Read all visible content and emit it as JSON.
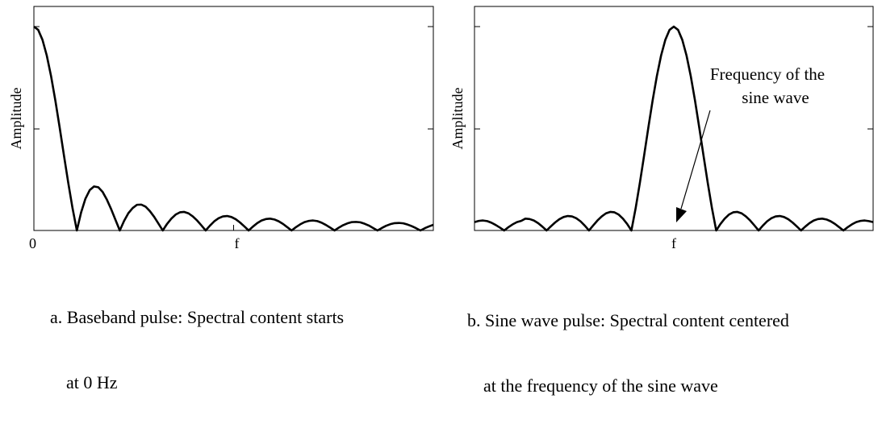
{
  "chart_data": [
    {
      "type": "line",
      "ylabel": "Amplitude",
      "xlabel": "",
      "x_tick_labels": [
        "0",
        "f"
      ],
      "caption": [
        "a. Baseband pulse: Spectral content starts",
        "at 0 Hz"
      ],
      "xlim": [
        0,
        9.3
      ],
      "ylim": [
        0,
        1.0
      ],
      "series": [
        {
          "x": [
            0.0,
            0.1,
            0.2,
            0.3,
            0.4,
            0.5,
            0.6,
            0.7,
            0.8,
            0.9,
            1.0,
            1.1,
            1.2,
            1.3,
            1.4,
            1.5,
            1.6,
            1.7,
            1.8,
            1.9,
            2.0,
            2.1,
            2.2,
            2.3,
            2.4,
            2.5,
            2.6,
            2.7,
            2.8,
            2.9,
            3.0,
            3.1,
            3.2,
            3.3,
            3.4,
            3.5,
            3.6,
            3.7,
            3.8,
            3.9,
            4.0,
            4.1,
            4.2,
            4.3,
            4.4,
            4.5,
            4.6,
            4.7,
            4.8,
            4.9,
            5.0,
            5.1,
            5.2,
            5.3,
            5.4,
            5.5,
            5.6,
            5.7,
            5.8,
            5.9,
            6.0,
            6.1,
            6.2,
            6.3,
            6.4,
            6.5,
            6.6,
            6.7,
            6.8,
            6.9,
            7.0,
            7.1,
            7.2,
            7.3,
            7.4,
            7.5,
            7.6,
            7.7,
            7.8,
            7.9,
            8.0,
            8.1,
            8.2,
            8.3,
            8.4,
            8.5,
            8.6,
            8.7,
            8.8,
            8.9,
            9.0,
            9.1,
            9.2,
            9.3
          ],
          "y": [
            1.0,
            0.984,
            0.935,
            0.858,
            0.757,
            0.637,
            0.505,
            0.368,
            0.234,
            0.109,
            0.0,
            0.089,
            0.156,
            0.198,
            0.216,
            0.212,
            0.189,
            0.151,
            0.104,
            0.052,
            0.0,
            0.047,
            0.085,
            0.11,
            0.126,
            0.127,
            0.117,
            0.095,
            0.067,
            0.034,
            0.0,
            0.032,
            0.058,
            0.078,
            0.089,
            0.091,
            0.084,
            0.069,
            0.049,
            0.025,
            0.0,
            0.024,
            0.045,
            0.06,
            0.069,
            0.071,
            0.066,
            0.055,
            0.039,
            0.02,
            0.0,
            0.019,
            0.036,
            0.049,
            0.056,
            0.058,
            0.054,
            0.045,
            0.032,
            0.016,
            0.0,
            0.016,
            0.03,
            0.041,
            0.047,
            0.049,
            0.046,
            0.038,
            0.027,
            0.014,
            0.0,
            0.014,
            0.026,
            0.035,
            0.041,
            0.042,
            0.04,
            0.033,
            0.024,
            0.012,
            0.0,
            0.012,
            0.023,
            0.031,
            0.036,
            0.037,
            0.035,
            0.029,
            0.021,
            0.011,
            0.0,
            0.011,
            0.02,
            0.028
          ]
        }
      ]
    },
    {
      "type": "line",
      "ylabel": "Amplitude",
      "xlabel": "",
      "x_tick_labels": [
        "f"
      ],
      "caption": [
        "b. Sine wave pulse: Spectral content centered",
        "at the frequency of the sine wave"
      ],
      "annotation": [
        "Frequency of the",
        "sine wave"
      ],
      "xlim": [
        -4.7,
        4.7
      ],
      "ylim": [
        0,
        1.0
      ],
      "series": [
        {
          "x": [
            -4.7,
            -4.6,
            -4.5,
            -4.4,
            -4.3,
            -4.2,
            -4.1,
            -4.0,
            -3.9,
            -3.8,
            -3.7,
            -3.6,
            -3.5,
            -3.4,
            -3.3,
            -3.2,
            -3.1,
            -3.0,
            -2.9,
            -2.8,
            -2.7,
            -2.6,
            -2.5,
            -2.4,
            -2.3,
            -2.2,
            -2.1,
            -2.0,
            -1.9,
            -1.8,
            -1.7,
            -1.6,
            -1.5,
            -1.4,
            -1.3,
            -1.2,
            -1.1,
            -1.0,
            -0.9,
            -0.8,
            -0.7,
            -0.6,
            -0.5,
            -0.4,
            -0.3,
            -0.2,
            -0.1,
            0.0,
            0.1,
            0.2,
            0.3,
            0.4,
            0.5,
            0.6,
            0.7,
            0.8,
            0.9,
            1.0,
            1.1,
            1.2,
            1.3,
            1.4,
            1.5,
            1.6,
            1.7,
            1.8,
            1.9,
            2.0,
            2.1,
            2.2,
            2.3,
            2.4,
            2.5,
            2.6,
            2.7,
            2.8,
            2.9,
            3.0,
            3.1,
            3.2,
            3.3,
            3.4,
            3.5,
            3.6,
            3.7,
            3.8,
            3.9,
            4.0,
            4.1,
            4.2,
            4.3,
            4.4,
            4.5,
            4.6,
            4.7
          ],
          "y": [
            0.041,
            0.047,
            0.049,
            0.046,
            0.038,
            0.027,
            0.014,
            0.0,
            0.016,
            0.03,
            0.041,
            0.047,
            0.058,
            0.056,
            0.049,
            0.036,
            0.019,
            0.0,
            0.02,
            0.039,
            0.055,
            0.066,
            0.071,
            0.069,
            0.06,
            0.045,
            0.024,
            0.0,
            0.025,
            0.049,
            0.069,
            0.084,
            0.091,
            0.089,
            0.078,
            0.058,
            0.032,
            0.0,
            0.109,
            0.234,
            0.368,
            0.505,
            0.637,
            0.757,
            0.858,
            0.935,
            0.984,
            1.0,
            0.984,
            0.935,
            0.858,
            0.757,
            0.637,
            0.505,
            0.368,
            0.234,
            0.109,
            0.0,
            0.032,
            0.058,
            0.078,
            0.089,
            0.091,
            0.084,
            0.069,
            0.049,
            0.025,
            0.0,
            0.024,
            0.045,
            0.06,
            0.069,
            0.071,
            0.066,
            0.055,
            0.039,
            0.02,
            0.0,
            0.019,
            0.036,
            0.049,
            0.056,
            0.058,
            0.054,
            0.045,
            0.032,
            0.016,
            0.0,
            0.016,
            0.03,
            0.041,
            0.047,
            0.049,
            0.046,
            0.041
          ]
        }
      ]
    }
  ]
}
